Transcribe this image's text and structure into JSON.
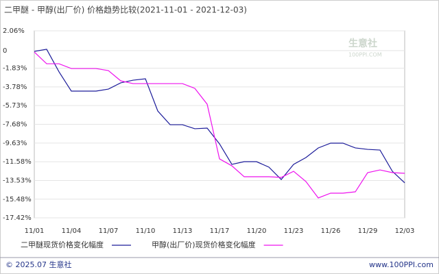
{
  "chart_data": {
    "type": "line",
    "title": "二甲醚 - 甲醇(出厂价) 价格趋势比较(2021-11-01 - 2021-12-03)",
    "watermark": "生意社",
    "watermark_url": "100PPI.COM",
    "footer_left": "© 2025.07 生意社",
    "footer_right": "www.100PPI.com",
    "categories": [
      "11/01",
      null,
      null,
      "11/04",
      null,
      null,
      "11/07",
      null,
      null,
      "11/10",
      null,
      null,
      "11/13",
      null,
      null,
      "11/17",
      null,
      null,
      "11/20",
      null,
      null,
      "11/23",
      null,
      null,
      "11/26",
      null,
      null,
      "11/29",
      null,
      null,
      "12/03"
    ],
    "series": [
      {
        "name": "二甲醚现货价格变化幅度",
        "color": "#1a1a99",
        "values": [
          -0.08,
          0.14,
          -2.21,
          -4.22,
          -4.22,
          -4.22,
          -4.01,
          -3.36,
          -3.08,
          -2.94,
          -6.29,
          -7.72,
          -7.72,
          -8.14,
          -8.07,
          -9.71,
          -11.85,
          -11.57,
          -11.57,
          -12.14,
          -13.43,
          -11.85,
          -11.14,
          -10.14,
          -9.64,
          -9.64,
          -10.14,
          -10.29,
          -10.36,
          -12.57,
          -13.78
        ]
      },
      {
        "name": "甲醇(出厂价)现货价格变化幅度",
        "color": "#ee11ee",
        "values": [
          -0.15,
          -1.37,
          -1.37,
          -1.87,
          -1.87,
          -1.87,
          -2.08,
          -3.15,
          -3.44,
          -3.44,
          -3.44,
          -3.44,
          -3.44,
          -3.93,
          -5.58,
          -11.28,
          -12.0,
          -13.14,
          -13.14,
          -13.14,
          -13.21,
          -12.57,
          -13.64,
          -15.35,
          -14.85,
          -14.85,
          -14.71,
          -12.71,
          -12.43,
          -12.71,
          -12.78
        ]
      }
    ],
    "ylim": [
      -17.42,
      2.06
    ],
    "yticks": [
      {
        "value": 2.06,
        "label": "2.06%"
      },
      0,
      {
        "value": -1.83,
        "label": "-1.83%"
      },
      {
        "value": -3.78,
        "label": "-3.78%"
      },
      {
        "value": -5.73,
        "label": "-5.73%"
      },
      {
        "value": -7.68,
        "label": "-7.68%"
      },
      {
        "value": -9.63,
        "label": "-9.63%"
      },
      {
        "value": -11.58,
        "label": "-11.58%"
      },
      {
        "value": -13.53,
        "label": "-13.53%"
      },
      {
        "value": -15.48,
        "label": "-15.48%"
      },
      {
        "value": -17.42,
        "label": "-17.42%"
      }
    ],
    "top_tick_color": "#dd0000",
    "grid": true
  }
}
